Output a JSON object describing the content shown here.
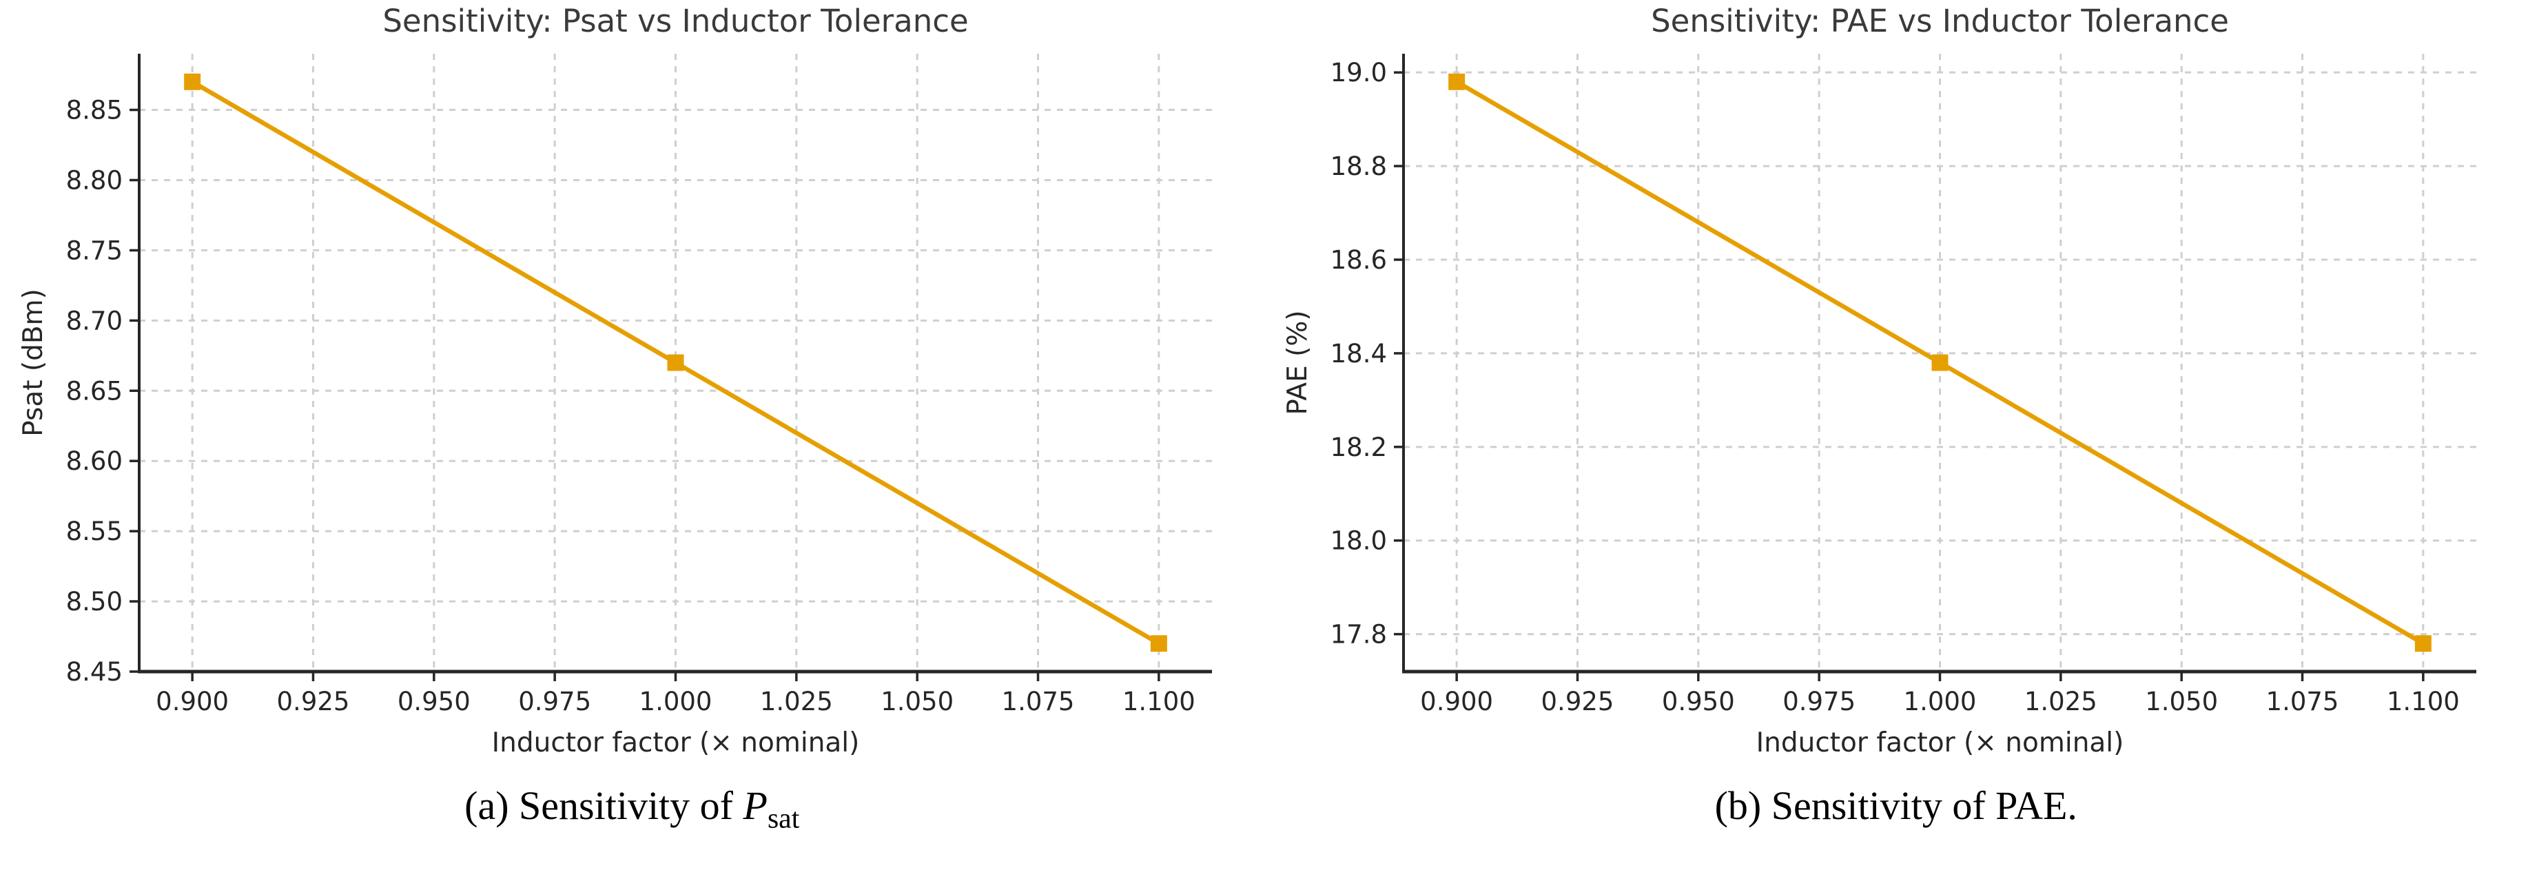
{
  "page": {
    "background": "#ffffff"
  },
  "colors": {
    "line": "#E69F00",
    "marker": "#E69F00",
    "grid": "#cfcfcf",
    "axis": "#262626",
    "tick_label": "#262626",
    "title": "#3a3a3a",
    "caption": "#000000"
  },
  "captions": {
    "a": {
      "prefix": "(a) Sensitivity of ",
      "symbol": "P",
      "subscript": "sat"
    },
    "b": {
      "text": "(b) Sensitivity of PAE."
    }
  },
  "chart_data": [
    {
      "type": "line",
      "title": "Sensitivity: Psat vs Inductor Tolerance",
      "xlabel": "Inductor factor (× nominal)",
      "ylabel": "Psat (dBm)",
      "x": [
        0.9,
        1.0,
        1.1
      ],
      "y": [
        8.87,
        8.67,
        8.47
      ],
      "series_name": "Psat",
      "marker": "square",
      "grid": true,
      "legend": "none",
      "xlim": [
        0.889,
        1.111
      ],
      "ylim": [
        8.45,
        8.89
      ],
      "xtick_values": [
        0.9,
        0.925,
        0.95,
        0.975,
        1.0,
        1.025,
        1.05,
        1.075,
        1.1
      ],
      "xtick_labels": [
        "0.900",
        "0.925",
        "0.950",
        "0.975",
        "1.000",
        "1.025",
        "1.050",
        "1.075",
        "1.100"
      ],
      "ytick_values": [
        8.45,
        8.5,
        8.55,
        8.6,
        8.65,
        8.7,
        8.75,
        8.8,
        8.85
      ],
      "ytick_labels": [
        "8.45",
        "8.50",
        "8.55",
        "8.60",
        "8.65",
        "8.70",
        "8.75",
        "8.80",
        "8.85"
      ]
    },
    {
      "type": "line",
      "title": "Sensitivity: PAE vs Inductor Tolerance",
      "xlabel": "Inductor factor (× nominal)",
      "ylabel": "PAE (%)",
      "x": [
        0.9,
        1.0,
        1.1
      ],
      "y": [
        18.98,
        18.38,
        17.78
      ],
      "series_name": "PAE",
      "marker": "square",
      "grid": true,
      "legend": "none",
      "xlim": [
        0.889,
        1.111
      ],
      "ylim": [
        17.72,
        19.04
      ],
      "xtick_values": [
        0.9,
        0.925,
        0.95,
        0.975,
        1.0,
        1.025,
        1.05,
        1.075,
        1.1
      ],
      "xtick_labels": [
        "0.900",
        "0.925",
        "0.950",
        "0.975",
        "1.000",
        "1.025",
        "1.050",
        "1.075",
        "1.100"
      ],
      "ytick_values": [
        17.8,
        18.0,
        18.2,
        18.4,
        18.6,
        18.8,
        19.0
      ],
      "ytick_labels": [
        "17.8",
        "18.0",
        "18.2",
        "18.4",
        "18.6",
        "18.8",
        "19.0"
      ]
    }
  ]
}
